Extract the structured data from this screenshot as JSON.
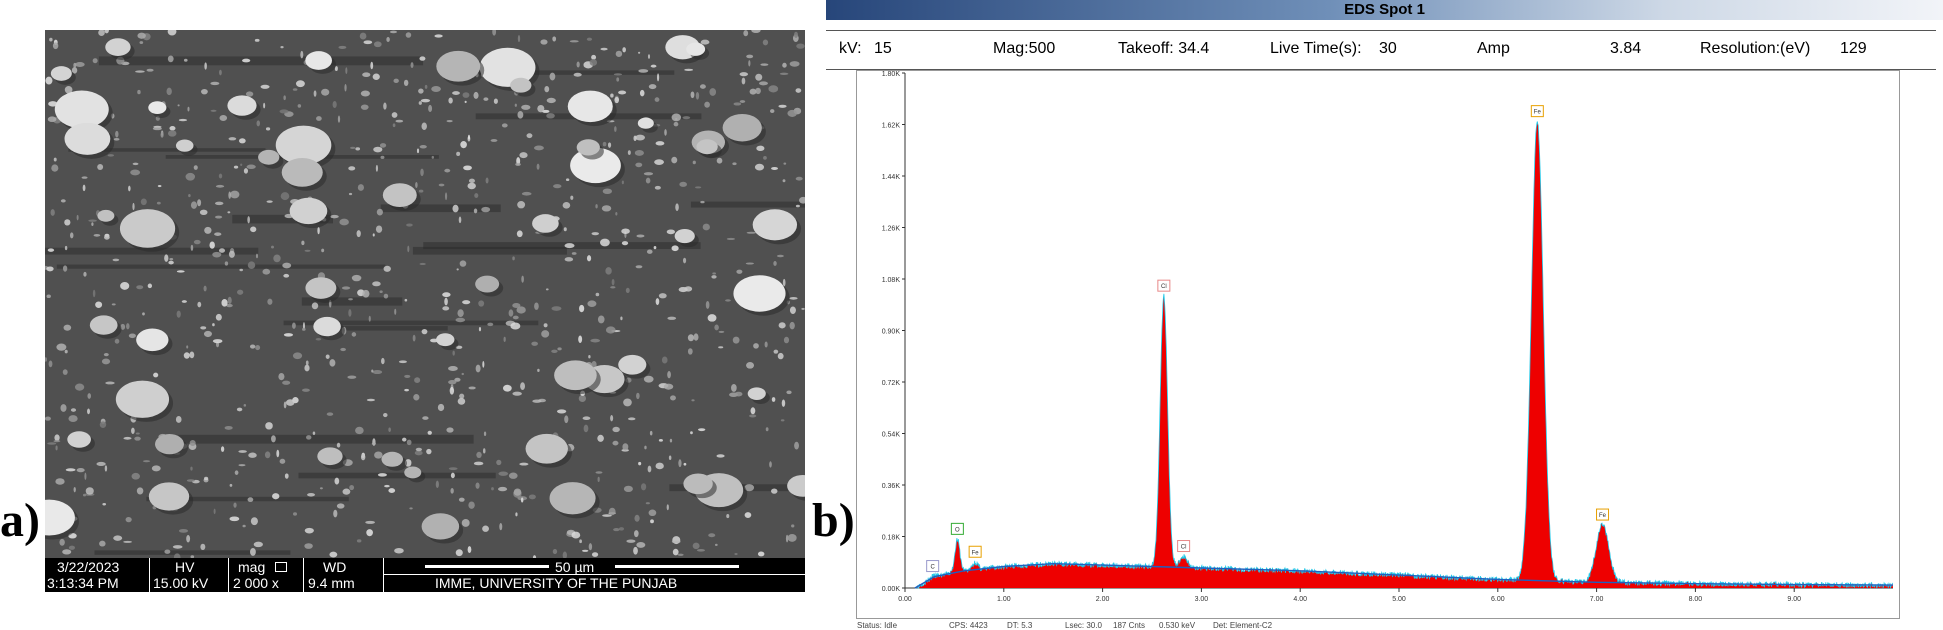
{
  "panels": {
    "a": "a)",
    "b": "b)"
  },
  "sem": {
    "date": "3/22/2023",
    "time": "3:13:34 PM",
    "hv_label": "HV",
    "hv_value": "15.00 kV",
    "mag_label": "mag",
    "mag_value": "2 000 x",
    "wd_label": "WD",
    "wd_value": "9.4 mm",
    "scale_label": "50 µm",
    "institution": "IMME, UNIVERSITY OF THE PUNJAB"
  },
  "eds": {
    "title": "EDS Spot 1",
    "info": {
      "kv_label": "kV:",
      "kv_value": "15",
      "mag": "Mag:500",
      "takeoff": "Takeoff: 34.4",
      "live_time_label": "Live Time(s):",
      "live_time_value": "30",
      "amp_label": "Amp",
      "amp_value": "3.84",
      "resolution_label": "Resolution:(eV)",
      "resolution_value": "129"
    },
    "status": {
      "status": "Status: Idle",
      "cps": "CPS: 4423",
      "dt": "DT: 5.3",
      "lsec": "Lsec: 30.0",
      "counts": "187 Cnts",
      "kev": "0.530 keV",
      "det": "Det: Element-C2"
    }
  },
  "colors": {
    "spectrum_fill": "#ee0000",
    "spectrum_outline": "#22c8e8",
    "background_fit": "#1f5fbf"
  },
  "chart_data": {
    "type": "area",
    "title": "EDS Spot 1",
    "xlabel": "",
    "ylabel": "",
    "xlim": [
      0,
      10
    ],
    "ylim": [
      0,
      1800
    ],
    "x_ticks": [
      0.0,
      1.0,
      2.0,
      3.0,
      4.0,
      5.0,
      6.0,
      7.0,
      8.0,
      9.0
    ],
    "x_tick_labels": [
      "0.00",
      "1.00",
      "2.00",
      "3.00",
      "4.00",
      "5.00",
      "6.00",
      "7.00",
      "8.00",
      "9.00"
    ],
    "y_ticks": [
      0,
      180,
      360,
      540,
      720,
      900,
      1080,
      1260,
      1440,
      1620,
      1800
    ],
    "y_tick_labels": [
      "0.00K",
      "0.18K",
      "0.36K",
      "0.54K",
      "0.72K",
      "0.90K",
      "1.08K",
      "1.26K",
      "1.44K",
      "1.62K",
      "1.80K"
    ],
    "peaks": [
      {
        "label": "C",
        "energy": 0.28,
        "counts": 40
      },
      {
        "label": "O",
        "energy": 0.53,
        "counts": 170
      },
      {
        "label": "Fe",
        "energy": 0.71,
        "counts": 90
      },
      {
        "label": "Cl",
        "energy": 2.62,
        "counts": 1020
      },
      {
        "label": "Cl",
        "energy": 2.82,
        "counts": 110
      },
      {
        "label": "Fe",
        "energy": 6.4,
        "counts": 1630
      },
      {
        "label": "Fe",
        "energy": 7.06,
        "counts": 220
      }
    ],
    "background": [
      [
        0.1,
        0
      ],
      [
        0.3,
        40
      ],
      [
        0.6,
        60
      ],
      [
        1.0,
        75
      ],
      [
        1.5,
        85
      ],
      [
        2.0,
        80
      ],
      [
        2.5,
        75
      ],
      [
        3.0,
        70
      ],
      [
        4.0,
        60
      ],
      [
        5.0,
        45
      ],
      [
        6.0,
        30
      ],
      [
        7.0,
        20
      ],
      [
        8.0,
        15
      ],
      [
        9.0,
        12
      ],
      [
        10.0,
        10
      ]
    ],
    "grid": false
  }
}
